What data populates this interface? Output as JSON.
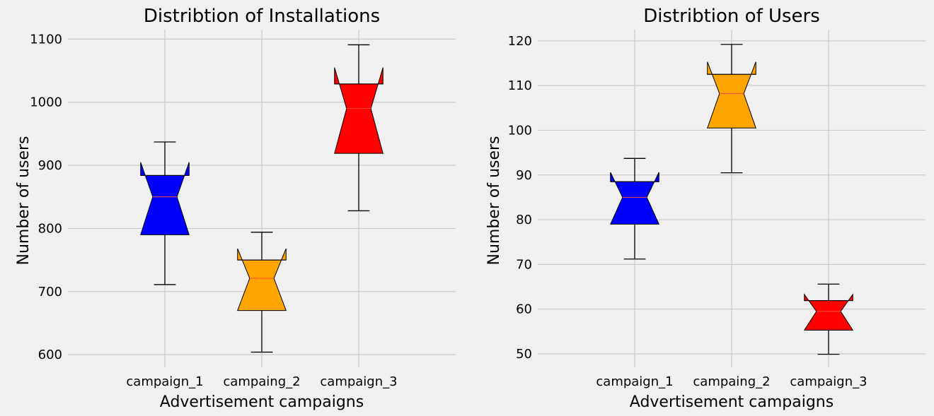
{
  "chart_data": [
    {
      "type": "boxplot",
      "title": "Distribtion of Installations",
      "xlabel": "Advertisement campaigns",
      "ylabel": "Number of users",
      "ylim": [
        580,
        1115
      ],
      "yticks": [
        600,
        700,
        800,
        900,
        1000,
        1100
      ],
      "notched": true,
      "grid": true,
      "categories": [
        "campaign_1",
        "campaing_2",
        "campaign_3"
      ],
      "boxes": [
        {
          "category": "campaign_1",
          "color": "#0000ff",
          "whisker_low": 711,
          "q1": 790,
          "median": 850,
          "q3": 884,
          "whisker_high": 937,
          "notch_low": 790,
          "notch_high": 905
        },
        {
          "category": "campaing_2",
          "color": "#ffa500",
          "whisker_low": 604,
          "q1": 670,
          "median": 721,
          "q3": 750,
          "whisker_high": 794,
          "notch_low": 670,
          "notch_high": 768
        },
        {
          "category": "campaign_3",
          "color": "#ff0000",
          "whisker_low": 828,
          "q1": 919,
          "median": 990,
          "q3": 1029,
          "whisker_high": 1091,
          "notch_low": 919,
          "notch_high": 1055
        }
      ]
    },
    {
      "type": "boxplot",
      "title": "Distribtion of Users",
      "xlabel": "Advertisement campaigns",
      "ylabel": "Number of users",
      "ylim": [
        47,
        122.5
      ],
      "yticks": [
        50,
        60,
        70,
        80,
        90,
        100,
        110,
        120
      ],
      "notched": true,
      "grid": true,
      "categories": [
        "campaign_1",
        "campaing_2",
        "campaign_3"
      ],
      "boxes": [
        {
          "category": "campaign_1",
          "color": "#0000ff",
          "whisker_low": 71.2,
          "q1": 79,
          "median": 85,
          "q3": 88.5,
          "whisker_high": 93.7,
          "notch_low": 79,
          "notch_high": 90.6
        },
        {
          "category": "campaing_2",
          "color": "#ffa500",
          "whisker_low": 90.5,
          "q1": 100.5,
          "median": 108.2,
          "q3": 112.5,
          "whisker_high": 119.2,
          "notch_low": 100.5,
          "notch_high": 115.3
        },
        {
          "category": "campaign_3",
          "color": "#ff0000",
          "whisker_low": 49.9,
          "q1": 55.3,
          "median": 59.5,
          "q3": 61.9,
          "whisker_high": 65.6,
          "notch_low": 55.3,
          "notch_high": 63.3
        }
      ]
    }
  ]
}
